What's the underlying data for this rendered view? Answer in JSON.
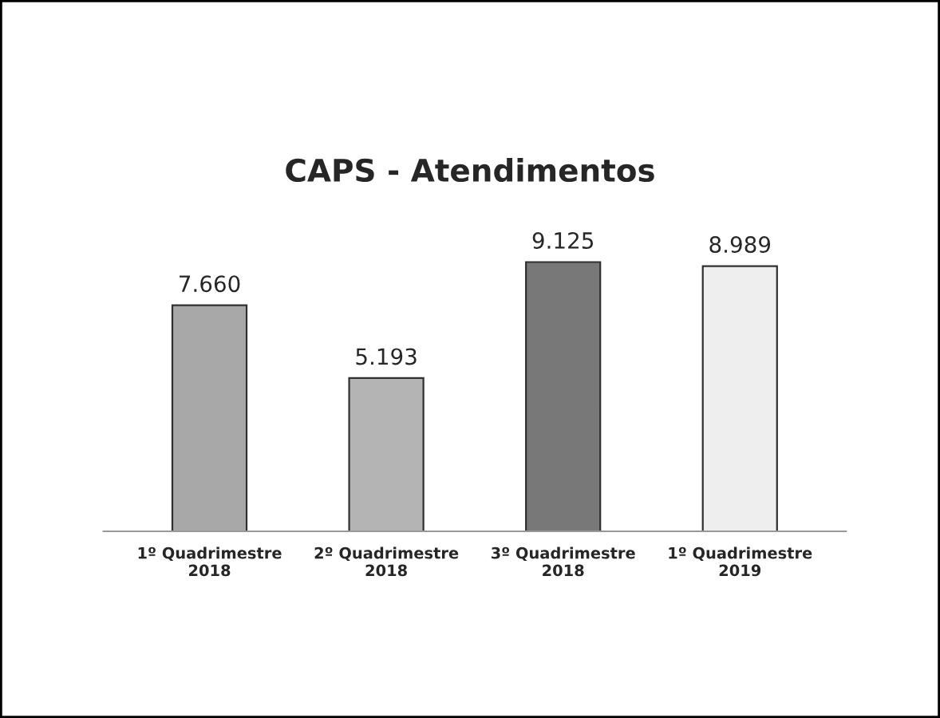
{
  "chart_data": {
    "type": "bar",
    "title": "CAPS - Atendimentos",
    "categories": [
      "1º Quadrimestre\n2018",
      "2º Quadrimestre\n2018",
      "3º Quadrimestre\n2018",
      "1º Quadrimestre\n2019"
    ],
    "values": [
      7660,
      5193,
      9125,
      8989
    ],
    "colors": [
      "#a8a8a8",
      "#b4b4b4",
      "#787878",
      "#eeeeee"
    ],
    "value_labels": [
      "7.660",
      "5.193",
      "9.125",
      "8.989"
    ],
    "grid": false,
    "legend": false
  }
}
